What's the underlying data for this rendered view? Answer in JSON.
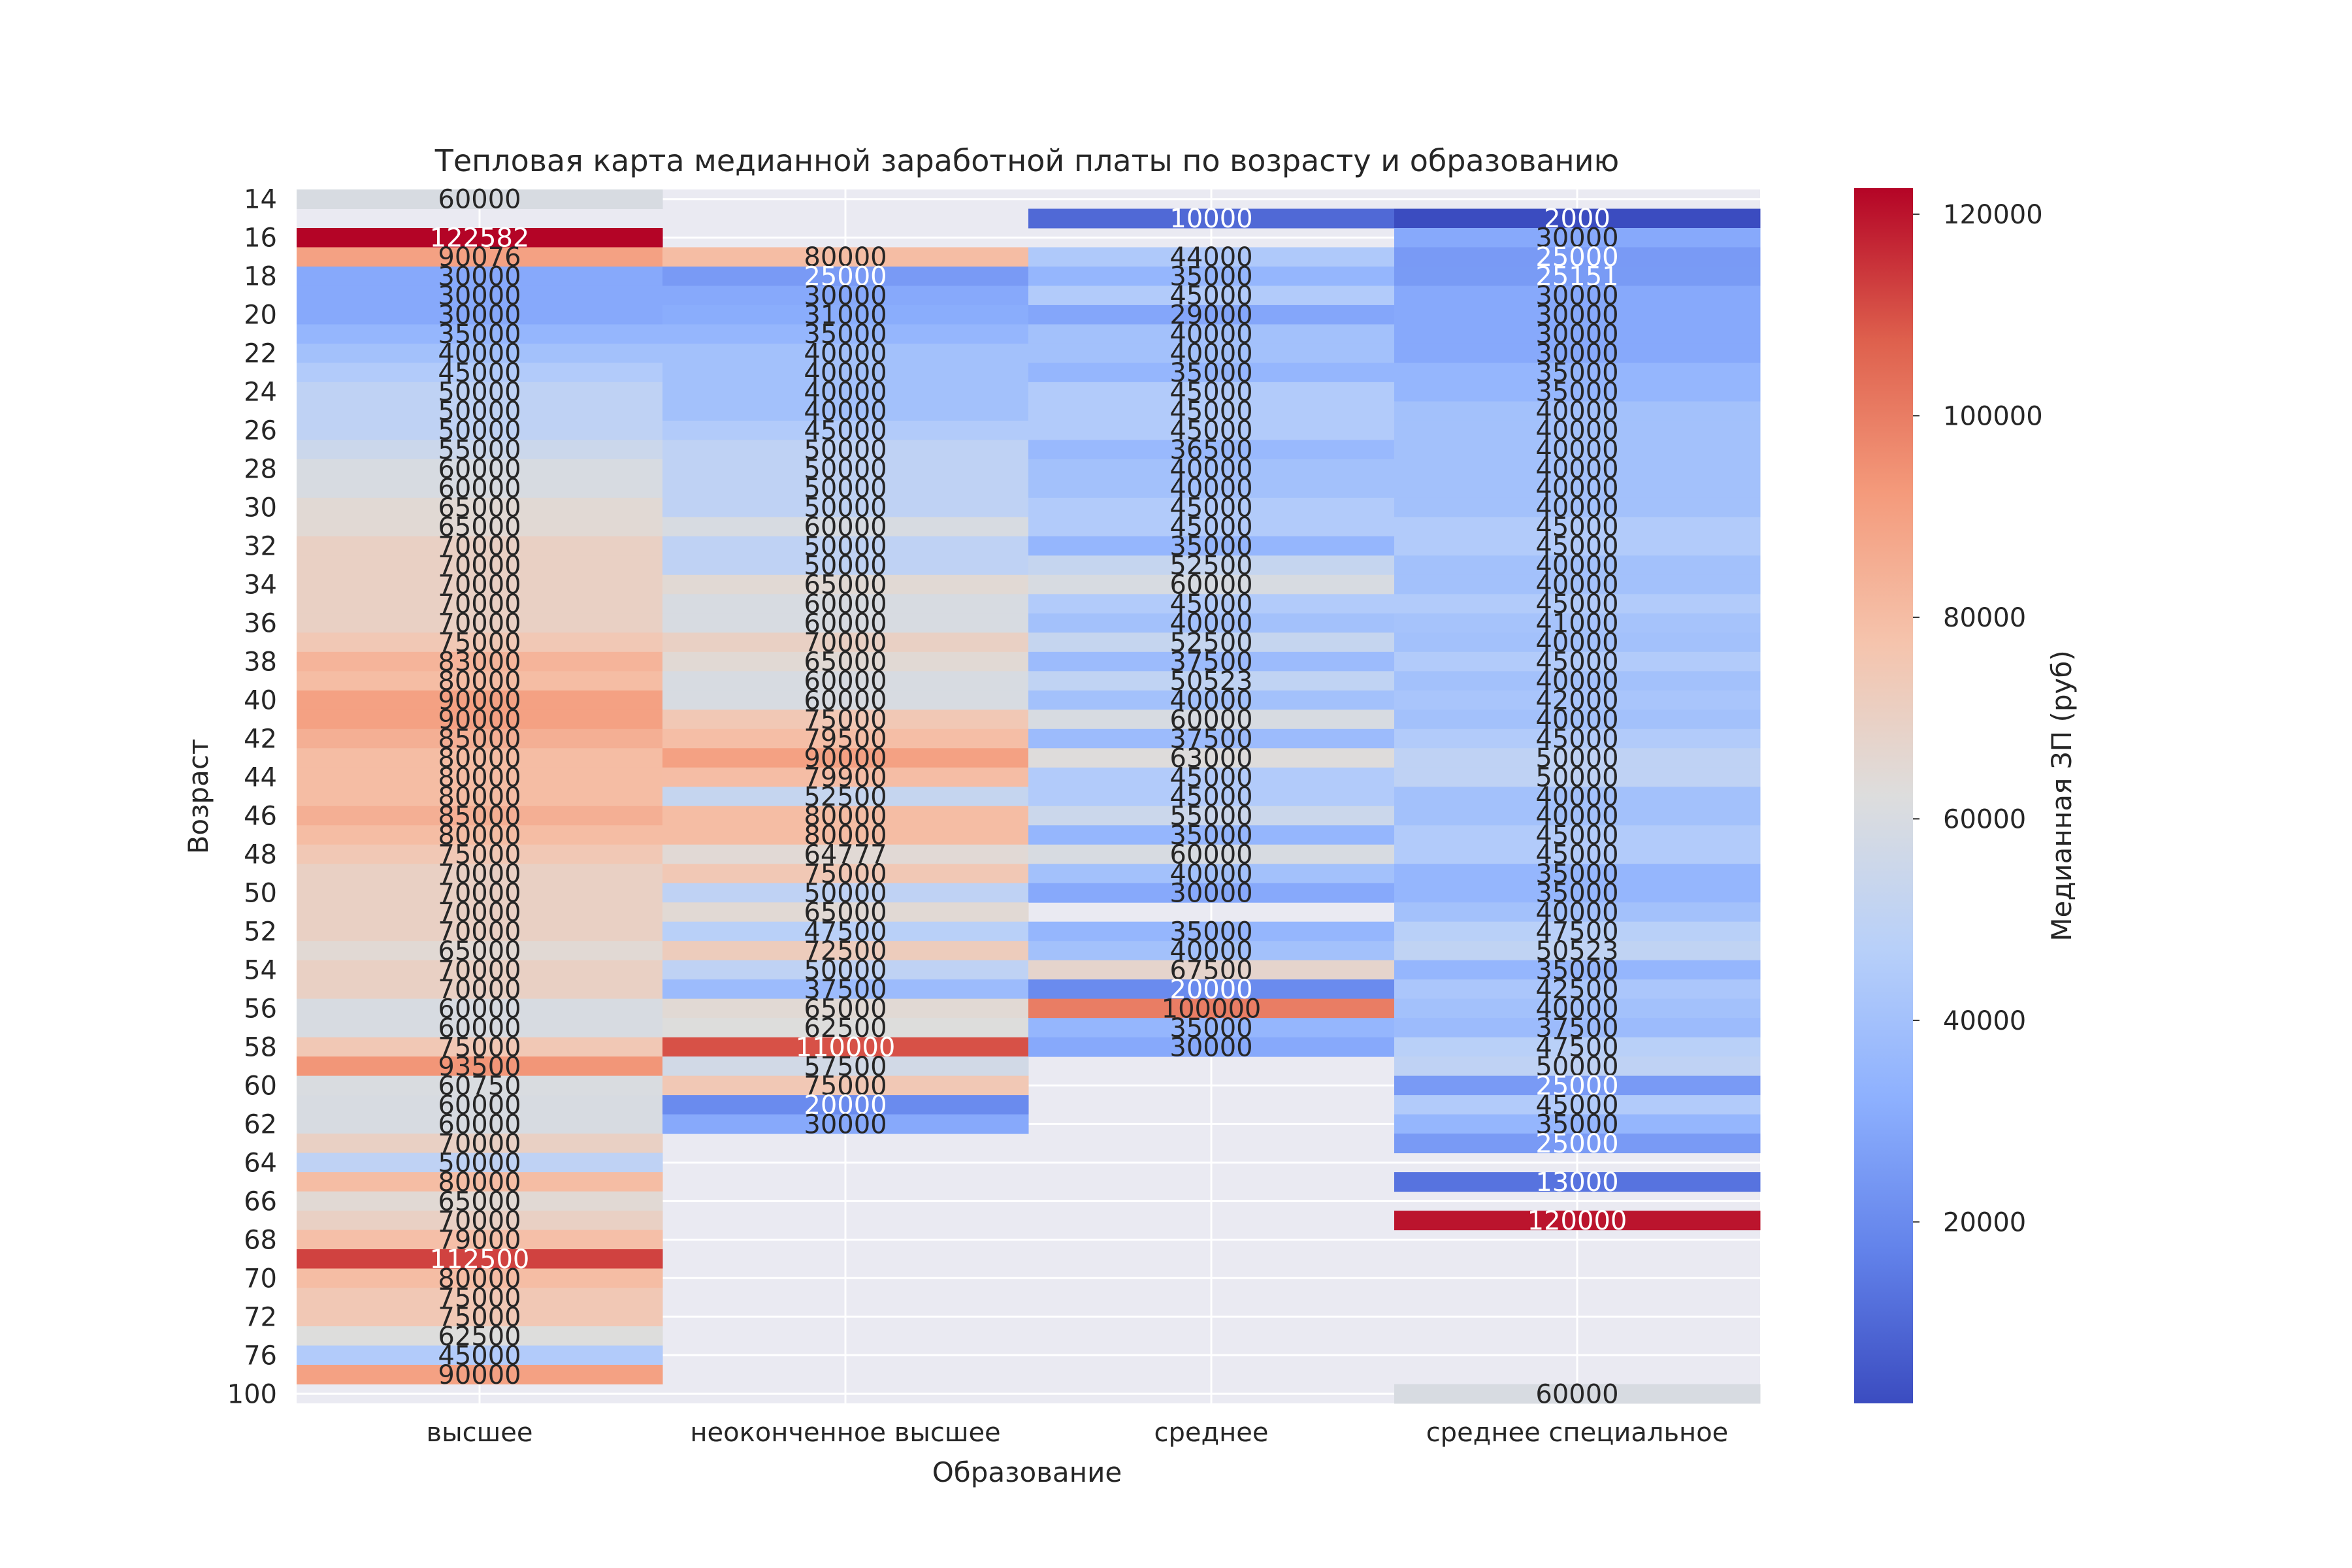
{
  "chart_data": {
    "type": "heatmap",
    "title": "Тепловая карта медианной заработной платы по возрасту и образованию",
    "xlabel": "Образование",
    "ylabel": "Возраст",
    "colorbar_label": "Медианная ЗП (руб)",
    "colormap": "coolwarm",
    "value_range": [
      2000,
      122582
    ],
    "colorbar_ticks": [
      20000,
      40000,
      60000,
      80000,
      100000,
      120000
    ],
    "categories": [
      "высшее",
      "неоконченное высшее",
      "среднее",
      "среднее специальное"
    ],
    "y_rows": [
      "14",
      "15",
      "16",
      "17",
      "18",
      "19",
      "20",
      "21",
      "22",
      "23",
      "24",
      "25",
      "26",
      "27",
      "28",
      "29",
      "30",
      "31",
      "32",
      "33",
      "34",
      "35",
      "36",
      "37",
      "38",
      "39",
      "40",
      "41",
      "42",
      "43",
      "44",
      "45",
      "46",
      "47",
      "48",
      "49",
      "50",
      "51",
      "52",
      "53",
      "54",
      "55",
      "56",
      "57",
      "58",
      "59",
      "60",
      "61",
      "62",
      "63",
      "64",
      "65",
      "66",
      "67",
      "68",
      "69",
      "70",
      "71",
      "72",
      "73",
      "76",
      "77",
      "100"
    ],
    "y_tick_labels": [
      "14",
      "16",
      "18",
      "20",
      "22",
      "24",
      "26",
      "28",
      "30",
      "32",
      "34",
      "36",
      "38",
      "40",
      "42",
      "44",
      "46",
      "48",
      "50",
      "52",
      "54",
      "56",
      "58",
      "60",
      "62",
      "64",
      "66",
      "68",
      "70",
      "72",
      "76",
      "100"
    ],
    "values": [
      [
        60000,
        null,
        null,
        null
      ],
      [
        null,
        null,
        10000,
        2000
      ],
      [
        122582,
        null,
        null,
        30000
      ],
      [
        90076,
        80000,
        44000,
        25000
      ],
      [
        30000,
        25000,
        35000,
        25151
      ],
      [
        30000,
        30000,
        45000,
        30000
      ],
      [
        30000,
        31000,
        29000,
        30000
      ],
      [
        35000,
        35000,
        40000,
        30000
      ],
      [
        40000,
        40000,
        40000,
        30000
      ],
      [
        45000,
        40000,
        35000,
        35000
      ],
      [
        50000,
        40000,
        45000,
        35000
      ],
      [
        50000,
        40000,
        45000,
        40000
      ],
      [
        50000,
        45000,
        45000,
        40000
      ],
      [
        55000,
        50000,
        36500,
        40000
      ],
      [
        60000,
        50000,
        40000,
        40000
      ],
      [
        60000,
        50000,
        40000,
        40000
      ],
      [
        65000,
        50000,
        45000,
        40000
      ],
      [
        65000,
        60000,
        45000,
        45000
      ],
      [
        70000,
        50000,
        35000,
        45000
      ],
      [
        70000,
        50000,
        52500,
        40000
      ],
      [
        70000,
        65000,
        60000,
        40000
      ],
      [
        70000,
        60000,
        45000,
        45000
      ],
      [
        70000,
        60000,
        40000,
        41000
      ],
      [
        75000,
        70000,
        52500,
        40000
      ],
      [
        83000,
        65000,
        37500,
        45000
      ],
      [
        80000,
        60000,
        50523,
        40000
      ],
      [
        90000,
        60000,
        40000,
        42000
      ],
      [
        90000,
        75000,
        60000,
        40000
      ],
      [
        85000,
        79500,
        37500,
        45000
      ],
      [
        80000,
        90000,
        63000,
        50000
      ],
      [
        80000,
        79900,
        45000,
        50000
      ],
      [
        80000,
        52500,
        45000,
        40000
      ],
      [
        85000,
        80000,
        55000,
        40000
      ],
      [
        80000,
        80000,
        35000,
        45000
      ],
      [
        75000,
        64777,
        60000,
        45000
      ],
      [
        70000,
        75000,
        40000,
        35000
      ],
      [
        70000,
        50000,
        30000,
        35000
      ],
      [
        70000,
        65000,
        null,
        40000
      ],
      [
        70000,
        47500,
        35000,
        47500
      ],
      [
        65000,
        72500,
        40000,
        50523
      ],
      [
        70000,
        50000,
        67500,
        35000
      ],
      [
        70000,
        37500,
        20000,
        42500
      ],
      [
        60000,
        65000,
        100000,
        40000
      ],
      [
        60000,
        62500,
        35000,
        37500
      ],
      [
        75000,
        110000,
        30000,
        47500
      ],
      [
        93500,
        57500,
        null,
        50000
      ],
      [
        60750,
        75000,
        null,
        25000
      ],
      [
        60000,
        20000,
        null,
        45000
      ],
      [
        60000,
        30000,
        null,
        35000
      ],
      [
        70000,
        null,
        null,
        25000
      ],
      [
        50000,
        null,
        null,
        null
      ],
      [
        80000,
        null,
        null,
        13000
      ],
      [
        65000,
        null,
        null,
        null
      ],
      [
        70000,
        null,
        null,
        120000
      ],
      [
        79000,
        null,
        null,
        null
      ],
      [
        112500,
        null,
        null,
        null
      ],
      [
        80000,
        null,
        null,
        null
      ],
      [
        75000,
        null,
        null,
        null
      ],
      [
        75000,
        null,
        null,
        null
      ],
      [
        62500,
        null,
        null,
        null
      ],
      [
        45000,
        null,
        null,
        null
      ],
      [
        90000,
        null,
        null,
        null
      ],
      [
        null,
        null,
        null,
        60000
      ]
    ]
  }
}
